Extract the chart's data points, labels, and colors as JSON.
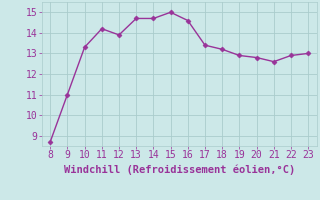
{
  "x": [
    8,
    9,
    10,
    11,
    12,
    13,
    14,
    15,
    16,
    17,
    18,
    19,
    20,
    21,
    22,
    23
  ],
  "y": [
    8.7,
    11.0,
    13.3,
    14.2,
    13.9,
    14.7,
    14.7,
    15.0,
    14.6,
    13.4,
    13.2,
    12.9,
    12.8,
    12.6,
    12.9,
    13.0
  ],
  "line_color": "#993399",
  "marker": "D",
  "marker_size": 2.5,
  "bg_color": "#cce8e8",
  "grid_color": "#aacccc",
  "xlabel": "Windchill (Refroidissement éolien,°C)",
  "xlabel_color": "#993399",
  "xlabel_fontsize": 7.5,
  "tick_color": "#993399",
  "tick_fontsize": 7,
  "ylim": [
    8.5,
    15.5
  ],
  "xlim": [
    7.5,
    23.5
  ],
  "yticks": [
    9,
    10,
    11,
    12,
    13,
    14,
    15
  ],
  "xticks": [
    8,
    9,
    10,
    11,
    12,
    13,
    14,
    15,
    16,
    17,
    18,
    19,
    20,
    21,
    22,
    23
  ]
}
